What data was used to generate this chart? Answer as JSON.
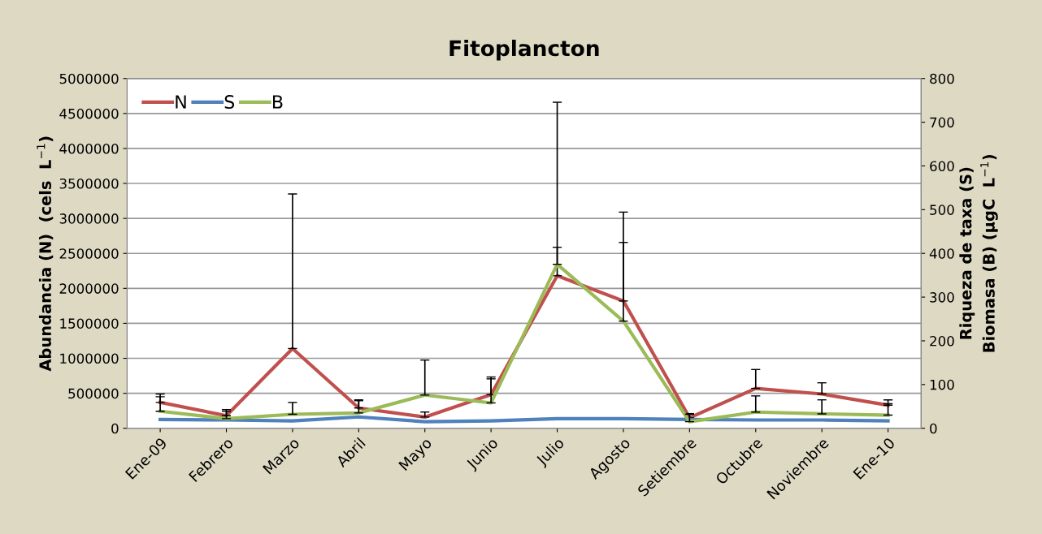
{
  "chart_data": {
    "type": "line",
    "title": "Fitoplancton",
    "ylabel": "Abundancia (N)  (cels  L$^{−1}$)",
    "y2label": "Riqueza de taxa (S)\nBiomasa (B) (µgC  L$^{−1}$)",
    "categories": [
      "Ene-09",
      "Febrero",
      "Marzo",
      "Abril",
      "Mayo",
      "Junio",
      "Julio",
      "Agosto",
      "Setiembre",
      "Octubre",
      "Noviembre",
      "Ene-10"
    ],
    "series": [
      {
        "name": "N",
        "color": "#c0504d",
        "values": [
          370000,
          180000,
          1140000,
          290000,
          160000,
          480000,
          2180000,
          1820000,
          150000,
          570000,
          490000,
          330000
        ],
        "errors": [
          [
            370000,
            490000
          ],
          [
            180000,
            267000
          ],
          [
            1140000,
            3350000
          ],
          [
            290000,
            406000
          ],
          [
            160000,
            232000
          ],
          [
            480000,
            733000
          ],
          [
            2180000,
            4660000
          ],
          [
            1820000,
            3090000
          ],
          [
            150000,
            210000
          ],
          [
            570000,
            840000
          ],
          [
            490000,
            650000
          ],
          [
            330000,
            406000
          ]
        ]
      },
      {
        "name": "S",
        "color": "#4f81bd",
        "axis": "y2",
        "values": [
          20,
          19,
          17,
          26,
          15,
          17,
          22,
          22,
          20,
          19,
          19,
          17
        ]
      },
      {
        "name": "B",
        "color": "#9bbb59",
        "axis": "y2",
        "values": [
          39,
          22,
          32,
          35,
          76,
          58,
          375,
          245,
          15,
          37,
          33,
          30
        ],
        "errors": [
          [
            39,
            72
          ],
          [
            22,
            39
          ],
          [
            32,
            59
          ],
          [
            35,
            63
          ],
          [
            76,
            156
          ],
          [
            58,
            113
          ],
          [
            375,
            414
          ],
          [
            245,
            425
          ],
          [
            15,
            32
          ],
          [
            37,
            74
          ],
          [
            33,
            65
          ],
          [
            30,
            56
          ]
        ]
      }
    ],
    "ylim": [
      0,
      5000000
    ],
    "yticks": [
      0,
      500000,
      1000000,
      1500000,
      2000000,
      2500000,
      3000000,
      3500000,
      4000000,
      4500000,
      5000000
    ],
    "y2lim": [
      0,
      800
    ],
    "y2ticks": [
      0,
      100,
      200,
      300,
      400,
      500,
      600,
      700,
      800
    ],
    "grid": "y",
    "legend": "top left",
    "marker": "none",
    "line_style": "solid"
  }
}
